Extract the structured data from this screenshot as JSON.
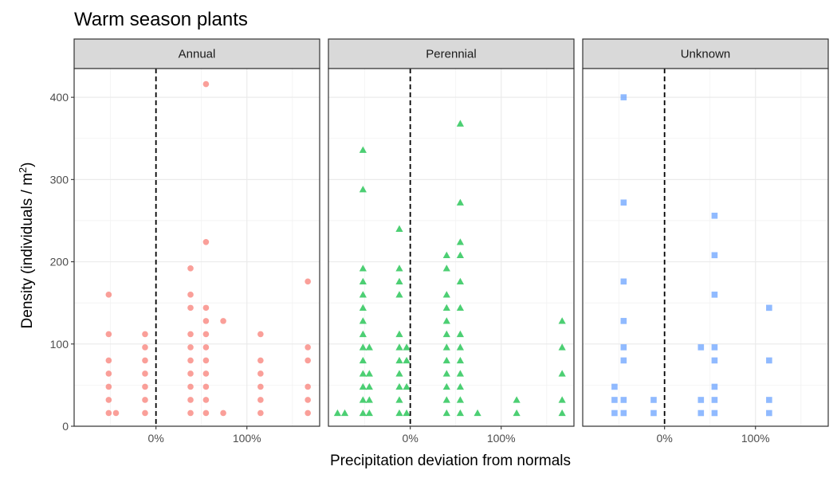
{
  "chart_data": {
    "type": "scatter",
    "title": "Warm season plants",
    "xlabel": "Precipitation deviation from normals",
    "ylabel": "Density (individuals / m",
    "ylabel_sup": "2",
    "ylabel_end": ")",
    "xlim": [
      -0.9,
      1.8
    ],
    "ylim": [
      0,
      435
    ],
    "xticks": [
      {
        "v": 0,
        "label": "0%"
      },
      {
        "v": 1,
        "label": "100%"
      }
    ],
    "yticks": [
      {
        "v": 0,
        "label": "0"
      },
      {
        "v": 100,
        "label": "100"
      },
      {
        "v": 200,
        "label": "200"
      },
      {
        "v": 300,
        "label": "300"
      },
      {
        "v": 400,
        "label": "400"
      }
    ],
    "grid": true,
    "reference_line": {
      "x": 0,
      "style": "dashed"
    },
    "panels": [
      {
        "name": "Annual",
        "color": "#F8766D",
        "shape": "circle",
        "points": [
          [
            -0.52,
            16
          ],
          [
            -0.52,
            32
          ],
          [
            -0.52,
            48
          ],
          [
            -0.52,
            64
          ],
          [
            -0.52,
            80
          ],
          [
            -0.52,
            112
          ],
          [
            -0.52,
            160
          ],
          [
            -0.44,
            16
          ],
          [
            -0.12,
            16
          ],
          [
            -0.12,
            32
          ],
          [
            -0.12,
            48
          ],
          [
            -0.12,
            64
          ],
          [
            -0.12,
            80
          ],
          [
            -0.12,
            96
          ],
          [
            -0.12,
            112
          ],
          [
            0.38,
            16
          ],
          [
            0.38,
            32
          ],
          [
            0.38,
            48
          ],
          [
            0.38,
            64
          ],
          [
            0.38,
            80
          ],
          [
            0.38,
            96
          ],
          [
            0.38,
            112
          ],
          [
            0.38,
            144
          ],
          [
            0.38,
            160
          ],
          [
            0.38,
            192
          ],
          [
            0.55,
            16
          ],
          [
            0.55,
            32
          ],
          [
            0.55,
            48
          ],
          [
            0.55,
            64
          ],
          [
            0.55,
            80
          ],
          [
            0.55,
            96
          ],
          [
            0.55,
            112
          ],
          [
            0.55,
            128
          ],
          [
            0.55,
            144
          ],
          [
            0.55,
            224
          ],
          [
            0.55,
            416
          ],
          [
            0.74,
            16
          ],
          [
            0.74,
            128
          ],
          [
            1.15,
            16
          ],
          [
            1.15,
            32
          ],
          [
            1.15,
            48
          ],
          [
            1.15,
            64
          ],
          [
            1.15,
            80
          ],
          [
            1.15,
            112
          ],
          [
            1.67,
            16
          ],
          [
            1.67,
            32
          ],
          [
            1.67,
            48
          ],
          [
            1.67,
            80
          ],
          [
            1.67,
            96
          ],
          [
            1.67,
            176
          ]
        ]
      },
      {
        "name": "Perennial",
        "color": "#00BA38",
        "shape": "triangle",
        "points": [
          [
            -0.8,
            16
          ],
          [
            -0.72,
            16
          ],
          [
            -0.52,
            16
          ],
          [
            -0.52,
            32
          ],
          [
            -0.52,
            48
          ],
          [
            -0.52,
            64
          ],
          [
            -0.52,
            80
          ],
          [
            -0.52,
            96
          ],
          [
            -0.52,
            112
          ],
          [
            -0.52,
            128
          ],
          [
            -0.52,
            144
          ],
          [
            -0.52,
            160
          ],
          [
            -0.52,
            176
          ],
          [
            -0.52,
            192
          ],
          [
            -0.52,
            288
          ],
          [
            -0.52,
            336
          ],
          [
            -0.45,
            16
          ],
          [
            -0.45,
            32
          ],
          [
            -0.45,
            48
          ],
          [
            -0.45,
            64
          ],
          [
            -0.45,
            96
          ],
          [
            -0.12,
            16
          ],
          [
            -0.12,
            32
          ],
          [
            -0.12,
            48
          ],
          [
            -0.12,
            64
          ],
          [
            -0.12,
            80
          ],
          [
            -0.12,
            96
          ],
          [
            -0.12,
            112
          ],
          [
            -0.12,
            160
          ],
          [
            -0.12,
            176
          ],
          [
            -0.12,
            192
          ],
          [
            -0.12,
            240
          ],
          [
            -0.04,
            16
          ],
          [
            -0.04,
            48
          ],
          [
            -0.04,
            80
          ],
          [
            -0.04,
            96
          ],
          [
            0.4,
            16
          ],
          [
            0.4,
            32
          ],
          [
            0.4,
            48
          ],
          [
            0.4,
            64
          ],
          [
            0.4,
            80
          ],
          [
            0.4,
            96
          ],
          [
            0.4,
            112
          ],
          [
            0.4,
            128
          ],
          [
            0.4,
            144
          ],
          [
            0.4,
            160
          ],
          [
            0.4,
            192
          ],
          [
            0.4,
            208
          ],
          [
            0.55,
            16
          ],
          [
            0.55,
            32
          ],
          [
            0.55,
            48
          ],
          [
            0.55,
            64
          ],
          [
            0.55,
            80
          ],
          [
            0.55,
            96
          ],
          [
            0.55,
            112
          ],
          [
            0.55,
            144
          ],
          [
            0.55,
            176
          ],
          [
            0.55,
            208
          ],
          [
            0.55,
            224
          ],
          [
            0.55,
            272
          ],
          [
            0.55,
            368
          ],
          [
            0.74,
            16
          ],
          [
            1.17,
            16
          ],
          [
            1.17,
            32
          ],
          [
            1.67,
            16
          ],
          [
            1.67,
            32
          ],
          [
            1.67,
            64
          ],
          [
            1.67,
            96
          ],
          [
            1.67,
            128
          ]
        ]
      },
      {
        "name": "Unknown",
        "color": "#619CFF",
        "shape": "square",
        "points": [
          [
            -0.55,
            16
          ],
          [
            -0.55,
            32
          ],
          [
            -0.55,
            48
          ],
          [
            -0.45,
            16
          ],
          [
            -0.45,
            32
          ],
          [
            -0.45,
            80
          ],
          [
            -0.45,
            96
          ],
          [
            -0.45,
            128
          ],
          [
            -0.45,
            176
          ],
          [
            -0.45,
            272
          ],
          [
            -0.45,
            400
          ],
          [
            -0.12,
            16
          ],
          [
            -0.12,
            32
          ],
          [
            0.4,
            16
          ],
          [
            0.4,
            32
          ],
          [
            0.4,
            96
          ],
          [
            0.55,
            16
          ],
          [
            0.55,
            32
          ],
          [
            0.55,
            48
          ],
          [
            0.55,
            80
          ],
          [
            0.55,
            96
          ],
          [
            0.55,
            160
          ],
          [
            0.55,
            208
          ],
          [
            0.55,
            256
          ],
          [
            1.15,
            16
          ],
          [
            1.15,
            32
          ],
          [
            1.15,
            80
          ],
          [
            1.15,
            144
          ]
        ]
      }
    ]
  }
}
